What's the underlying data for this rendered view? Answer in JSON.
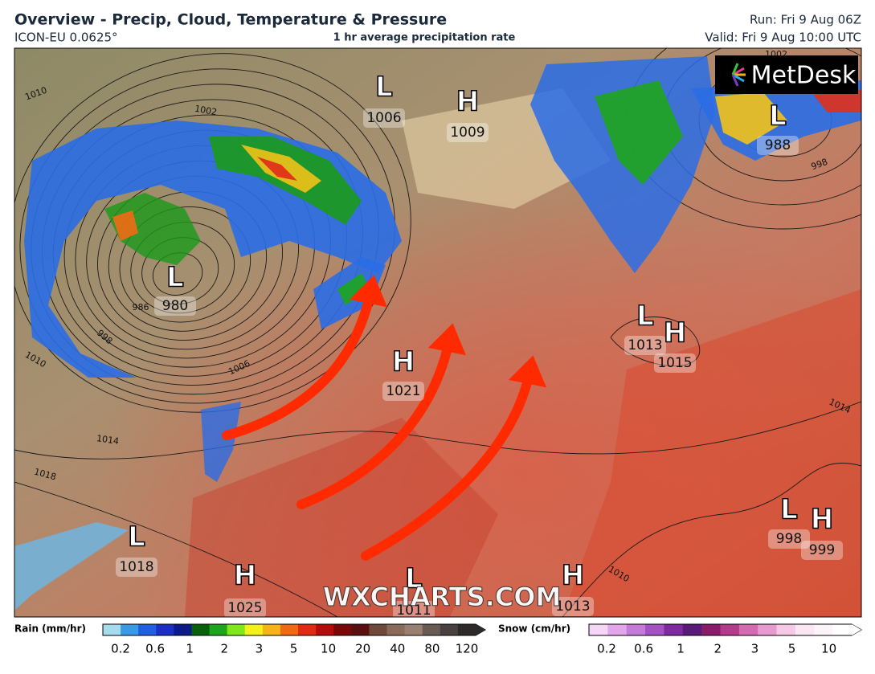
{
  "header": {
    "title": "Overview - Precip, Cloud, Temperature & Pressure",
    "model": "ICON-EU 0.0625°",
    "subtitle": "1 hr average precipitation rate",
    "run": "Run: Fri 9 Aug 06Z",
    "valid": "Valid: Fri 9 Aug 10:00 UTC"
  },
  "map": {
    "logo": "MetDesk",
    "watermark": "WXCHARTS.COM",
    "pressure_centers": [
      {
        "type": "L",
        "value": "1006"
      },
      {
        "type": "H",
        "value": "1009"
      },
      {
        "type": "L",
        "value": "988"
      },
      {
        "type": "L",
        "value": "980"
      },
      {
        "type": "L",
        "value": "1013"
      },
      {
        "type": "H",
        "value": "1015"
      },
      {
        "type": "H",
        "value": "1021"
      },
      {
        "type": "L",
        "value": "1018"
      },
      {
        "type": "H",
        "value": "1025"
      },
      {
        "type": "L",
        "value": "1011"
      },
      {
        "type": "H",
        "value": "1013"
      },
      {
        "type": "L",
        "value": "998"
      },
      {
        "type": "H",
        "value": "999"
      }
    ],
    "isobar_labels": [
      "1010",
      "1002",
      "1006",
      "1010",
      "1014",
      "1018",
      "998",
      "1010",
      "1014",
      "1002",
      "986",
      "998"
    ]
  },
  "legend": {
    "rain": {
      "label": "Rain (mm/hr)",
      "ticks": [
        0.2,
        0.6,
        1,
        2,
        3,
        5,
        10,
        20,
        40,
        80,
        120
      ],
      "colors": [
        "#a6dcee",
        "#3b9ae6",
        "#1f5fe0",
        "#1b2fc4",
        "#0c1a8a",
        "#07600a",
        "#1ea51e",
        "#7ee81a",
        "#f2f21a",
        "#f5b41a",
        "#f06a14",
        "#e02a14",
        "#b40c0c",
        "#7a0808",
        "#5a1010",
        "#6e4a3a",
        "#8a6a58",
        "#9a8070",
        "#6a5a54",
        "#4a4040",
        "#2e2a2a"
      ]
    },
    "snow": {
      "label": "Snow (cm/hr)",
      "ticks": [
        0.2,
        0.6,
        1,
        2,
        3,
        5,
        10
      ],
      "colors": [
        "#f6d6f6",
        "#e2a6ea",
        "#c47ad8",
        "#a452c2",
        "#7e2aa0",
        "#5a1a7a",
        "#8a1a6a",
        "#b43a8a",
        "#d46ab0",
        "#e89ad0",
        "#f6cae6",
        "#fbe6f4",
        "#fdf4fa",
        "#ffffff"
      ]
    }
  }
}
